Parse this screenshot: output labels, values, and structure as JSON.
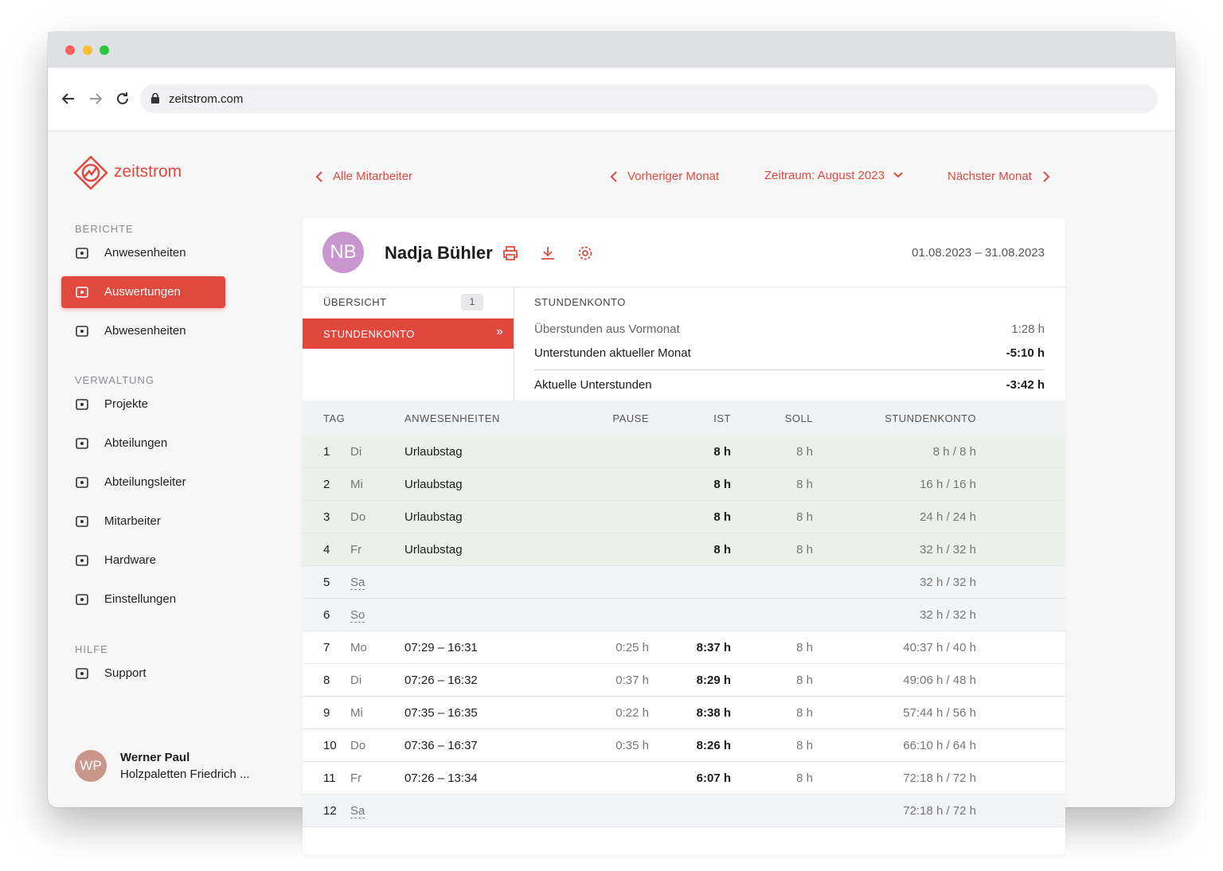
{
  "browser": {
    "url": "zeitstrom.com"
  },
  "sidebar": {
    "brand": "zeitstrom",
    "sections": [
      {
        "title": "BERICHTE",
        "items": [
          {
            "label": "Anwesenheiten"
          },
          {
            "label": "Auswertungen",
            "active": true
          },
          {
            "label": "Abwesenheiten"
          }
        ]
      },
      {
        "title": "VERWALTUNG",
        "items": [
          {
            "label": "Projekte"
          },
          {
            "label": "Abteilungen"
          },
          {
            "label": "Abteilungsleiter"
          },
          {
            "label": "Mitarbeiter"
          },
          {
            "label": "Hardware"
          },
          {
            "label": "Einstellungen"
          }
        ]
      },
      {
        "title": "HILFE",
        "items": [
          {
            "label": "Support"
          }
        ]
      }
    ],
    "user": {
      "initials": "WP",
      "name": "Werner Paul",
      "company": "Holzpaletten Friedrich ..."
    }
  },
  "nav": {
    "back": "Alle Mitarbeiter",
    "prev": "Vorheriger Monat",
    "period": "Zeitraum: August 2023",
    "next": "Nächster Monat"
  },
  "employee": {
    "initials": "NB",
    "name": "Nadja Bühler",
    "range": "01.08.2023 – 31.08.2023"
  },
  "tabs": [
    {
      "label": "ÜBERSICHT",
      "badge": 1
    },
    {
      "label": "STUNDENKONTO",
      "active": true
    }
  ],
  "account": {
    "title": "STUNDENKONTO",
    "rows": [
      {
        "label": "Überstunden aus Vormonat",
        "value": "1:28 h"
      },
      {
        "label": "Unterstunden aktueller Monat",
        "value": "-5:10 h"
      },
      {
        "label": "Aktuelle Unterstunden",
        "value": "-3:42 h"
      }
    ]
  },
  "table": {
    "headers": [
      "TAG",
      "ANWESENHEITEN",
      "PAUSE",
      "IST",
      "SOLL",
      "STUNDENKONTO"
    ],
    "rows": [
      [
        1,
        "Di",
        "Urlaubstag",
        null,
        "8 h",
        "8 h",
        "8 h / 8 h"
      ],
      [
        2,
        "Mi",
        "Urlaubstag",
        null,
        "8 h",
        "8 h",
        "16 h / 16 h"
      ],
      [
        3,
        "Do",
        "Urlaubstag",
        null,
        "8 h",
        "8 h",
        "24 h / 24 h"
      ],
      [
        4,
        "Fr",
        "Urlaubstag",
        null,
        "8 h",
        "8 h",
        "32 h / 32 h"
      ],
      [
        5,
        "Sa",
        null,
        null,
        null,
        null,
        "32 h / 32 h"
      ],
      [
        6,
        "So",
        null,
        null,
        null,
        null,
        "32 h / 32 h"
      ],
      [
        7,
        "Mo",
        "07:29 – 16:31",
        "0:25 h",
        "8:37 h",
        "8 h",
        "40:37 h / 40 h"
      ],
      [
        8,
        "Di",
        "07:26 – 16:32",
        "0:37 h",
        "8:29 h",
        "8 h",
        "49:06 h / 48 h"
      ],
      [
        9,
        "Mi",
        "07:35 – 16:35",
        "0:22 h",
        "8:38 h",
        "8 h",
        "57:44 h / 56 h"
      ],
      [
        10,
        "Do",
        "07:36 – 16:37",
        "0:35 h",
        "8:26 h",
        "8 h",
        "66:10 h / 64 h"
      ],
      [
        11,
        "Fr",
        "07:26 – 13:34",
        null,
        "6:07 h",
        "8 h",
        "72:18 h / 72 h"
      ],
      [
        12,
        "Sa",
        null,
        null,
        null,
        null,
        "72:18 h / 72 h"
      ]
    ]
  }
}
